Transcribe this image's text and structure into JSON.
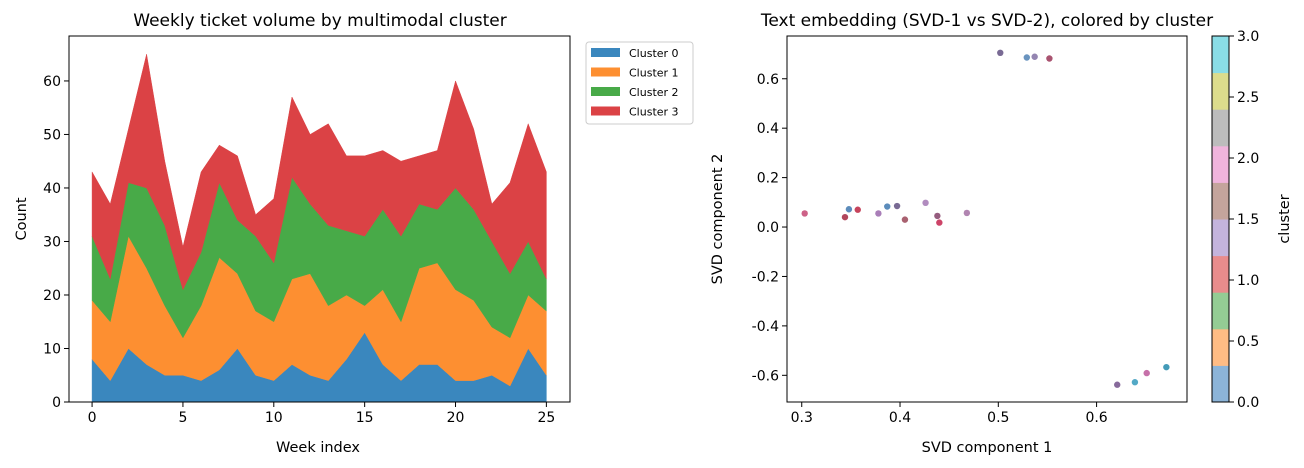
{
  "chart_data": [
    {
      "type": "area",
      "stacked": true,
      "title": "Weekly ticket volume by multimodal cluster",
      "xlabel": "Week index",
      "ylabel": "Count",
      "xlim": [
        -1.27,
        26.3
      ],
      "ylim": [
        0,
        68.4
      ],
      "xticks": [
        0,
        5,
        10,
        15,
        20,
        25
      ],
      "yticks": [
        0,
        10,
        20,
        30,
        40,
        50,
        60
      ],
      "grid": false,
      "legend_position": "outside-top-right",
      "x": [
        0,
        1,
        2,
        3,
        4,
        5,
        6,
        7,
        8,
        9,
        10,
        11,
        12,
        13,
        14,
        15,
        16,
        17,
        18,
        19,
        20,
        21,
        22,
        23,
        24,
        25
      ],
      "series": [
        {
          "name": "Cluster 0",
          "color": "#3a87be",
          "values": [
            8,
            4,
            10,
            7,
            5,
            5,
            4,
            6,
            10,
            5,
            4,
            7,
            5,
            4,
            8,
            13,
            7,
            4,
            7,
            7,
            4,
            4,
            5,
            3,
            10,
            5
          ]
        },
        {
          "name": "Cluster 1",
          "color": "#fd8f31",
          "values": [
            11,
            11,
            21,
            18,
            13,
            7,
            14,
            21,
            14,
            12,
            11,
            16,
            19,
            14,
            12,
            5,
            14,
            11,
            18,
            19,
            17,
            15,
            9,
            9,
            10,
            12
          ]
        },
        {
          "name": "Cluster 2",
          "color": "#48aa48",
          "values": [
            12,
            8,
            10,
            15,
            15,
            9,
            10,
            14,
            10,
            14,
            11,
            19,
            13,
            15,
            12,
            13,
            15,
            16,
            12,
            10,
            19,
            17,
            16,
            12,
            10,
            6
          ]
        },
        {
          "name": "Cluster 3",
          "color": "#db4245",
          "values": [
            12,
            14,
            10,
            25,
            12,
            8,
            15,
            7,
            12,
            4,
            12,
            15,
            13,
            19,
            14,
            15,
            11,
            14,
            9,
            11,
            20,
            15,
            7,
            17,
            22,
            20
          ]
        }
      ]
    },
    {
      "type": "scatter",
      "title": "Text embedding (SVD-1 vs SVD-2), colored by cluster",
      "xlabel": "SVD component 1",
      "ylabel": "SVD component 2",
      "xlim": [
        0.285,
        0.692
      ],
      "ylim": [
        -0.708,
        0.773
      ],
      "xticks": [
        "0.3",
        "0.4",
        "0.5",
        "0.6"
      ],
      "yticks": [
        "-0.6",
        "-0.4",
        "-0.2",
        "0.0",
        "0.2",
        "0.4",
        "0.6"
      ],
      "grid": false,
      "points": [
        {
          "x": 0.303,
          "y": 0.055,
          "color": "#c8507a"
        },
        {
          "x": 0.344,
          "y": 0.04,
          "color": "#a8324a"
        },
        {
          "x": 0.348,
          "y": 0.072,
          "color": "#4a80b4"
        },
        {
          "x": 0.357,
          "y": 0.07,
          "color": "#c0304a"
        },
        {
          "x": 0.378,
          "y": 0.055,
          "color": "#a070b0"
        },
        {
          "x": 0.387,
          "y": 0.083,
          "color": "#4a80b4"
        },
        {
          "x": 0.397,
          "y": 0.085,
          "color": "#6a5a88"
        },
        {
          "x": 0.405,
          "y": 0.03,
          "color": "#a05060"
        },
        {
          "x": 0.426,
          "y": 0.098,
          "color": "#a880b8"
        },
        {
          "x": 0.438,
          "y": 0.045,
          "color": "#8a4a70"
        },
        {
          "x": 0.44,
          "y": 0.018,
          "color": "#c83058"
        },
        {
          "x": 0.468,
          "y": 0.057,
          "color": "#a878a8"
        },
        {
          "x": 0.502,
          "y": 0.705,
          "color": "#6a5a88"
        },
        {
          "x": 0.529,
          "y": 0.686,
          "color": "#5a88b8"
        },
        {
          "x": 0.537,
          "y": 0.689,
          "color": "#8878a8"
        },
        {
          "x": 0.552,
          "y": 0.682,
          "color": "#a04060"
        },
        {
          "x": 0.621,
          "y": -0.638,
          "color": "#7a5a90"
        },
        {
          "x": 0.639,
          "y": -0.628,
          "color": "#40a0c0"
        },
        {
          "x": 0.651,
          "y": -0.591,
          "color": "#c060a0"
        },
        {
          "x": 0.671,
          "y": -0.567,
          "color": "#3090b0"
        }
      ],
      "colorbar": {
        "label": "cluster",
        "range": [
          0,
          3
        ],
        "ticks": [
          "0.0",
          "0.5",
          "1.0",
          "1.5",
          "2.0",
          "2.5",
          "3.0"
        ],
        "colors": [
          "#8cb4d8",
          "#ffbc84",
          "#94cc94",
          "#e88c8c",
          "#c4b4dc",
          "#c4a49c",
          "#f0b4dc",
          "#bcbcbc",
          "#dcdc8c",
          "#8adde6"
        ]
      }
    }
  ]
}
